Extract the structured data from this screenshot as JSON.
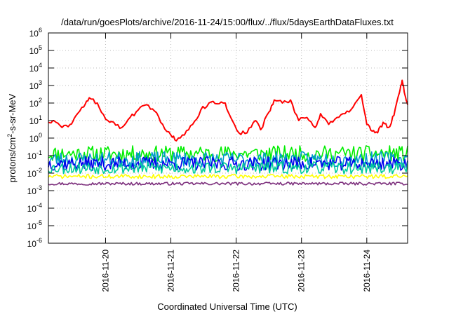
{
  "chart_data": {
    "type": "line",
    "title": "/data/run/goesPlots/archive/2016-11-24/15:00/flux/../flux/5daysEarthDataFluxes.txt",
    "xlabel": "Coordinated Universal Time (UTC)",
    "ylabel": {
      "prefix": "protons/cm",
      "sup": "2",
      "suffix": "-s-sr-MeV"
    },
    "yscale": "log",
    "ylim": [
      1e-06,
      1000000.0
    ],
    "xlim": [
      "2016-11-19T03:00",
      "2016-11-24T15:00"
    ],
    "grid": true,
    "legend": "none",
    "xticks": [
      {
        "x": "2016-11-20T00:00",
        "label": "2016-11-20"
      },
      {
        "x": "2016-11-21T00:00",
        "label": "2016-11-21"
      },
      {
        "x": "2016-11-22T00:00",
        "label": "2016-11-22"
      },
      {
        "x": "2016-11-23T00:00",
        "label": "2016-11-23"
      },
      {
        "x": "2016-11-24T00:00",
        "label": "2016-11-24"
      }
    ],
    "yticks": [
      {
        "base": "10",
        "exp": "-6",
        "value": 1e-06
      },
      {
        "base": "10",
        "exp": "-5",
        "value": 1e-05
      },
      {
        "base": "10",
        "exp": "-4",
        "value": 0.0001
      },
      {
        "base": "10",
        "exp": "-3",
        "value": 0.001
      },
      {
        "base": "10",
        "exp": "-2",
        "value": 0.01
      },
      {
        "base": "10",
        "exp": "-1",
        "value": 0.1
      },
      {
        "base": "10",
        "exp": "0",
        "value": 1
      },
      {
        "base": "10",
        "exp": "1",
        "value": 10.0
      },
      {
        "base": "10",
        "exp": "2",
        "value": 100.0
      },
      {
        "base": "10",
        "exp": "3",
        "value": 1000.0
      },
      {
        "base": "10",
        "exp": "4",
        "value": 10000.0
      },
      {
        "base": "10",
        "exp": "5",
        "value": 100000.0
      },
      {
        "base": "10",
        "exp": "6",
        "value": 1000000.0
      }
    ],
    "series": [
      {
        "color": "#ff0000",
        "noise": 0.12,
        "x": [
          "2016-11-19T03:00",
          "2016-11-19T05:00",
          "2016-11-19T08:00",
          "2016-11-19T11:00",
          "2016-11-19T13:00",
          "2016-11-19T16:00",
          "2016-11-19T18:00",
          "2016-11-19T21:00",
          "2016-11-20T00:00",
          "2016-11-20T03:00",
          "2016-11-20T06:00",
          "2016-11-20T09:00",
          "2016-11-20T12:00",
          "2016-11-20T15:00",
          "2016-11-20T18:00",
          "2016-11-20T21:00",
          "2016-11-21T00:00",
          "2016-11-21T02:00",
          "2016-11-21T05:00",
          "2016-11-21T08:00",
          "2016-11-21T11:00",
          "2016-11-21T14:00",
          "2016-11-21T17:00",
          "2016-11-21T20:00",
          "2016-11-21T22:00",
          "2016-11-22T01:00",
          "2016-11-22T04:00",
          "2016-11-22T07:00",
          "2016-11-22T09:00",
          "2016-11-22T12:00",
          "2016-11-22T14:00",
          "2016-11-22T17:00",
          "2016-11-22T20:00",
          "2016-11-22T23:00",
          "2016-11-23T02:00",
          "2016-11-23T05:00",
          "2016-11-23T07:00",
          "2016-11-23T10:00",
          "2016-11-23T13:00",
          "2016-11-23T16:00",
          "2016-11-23T19:00",
          "2016-11-23T22:00",
          "2016-11-24T00:00",
          "2016-11-24T02:00",
          "2016-11-24T04:00",
          "2016-11-24T06:00",
          "2016-11-24T08:00",
          "2016-11-24T10:00",
          "2016-11-24T12:00",
          "2016-11-24T13:00",
          "2016-11-24T14:00",
          "2016-11-24T15:00"
        ],
        "y": [
          8,
          10,
          4,
          6,
          18,
          60,
          200,
          100,
          12,
          8,
          4,
          15,
          40,
          80,
          35,
          6,
          1.5,
          0.7,
          1.5,
          6,
          40,
          100,
          90,
          100,
          15,
          2,
          2,
          10,
          3,
          30,
          150,
          100,
          150,
          10,
          15,
          4,
          25,
          6,
          15,
          25,
          60,
          300,
          6,
          2.5,
          2,
          8,
          4,
          20,
          400,
          2000,
          300,
          80
        ]
      },
      {
        "color": "#00ee00",
        "center": 0.13,
        "spread": 0.45,
        "seed": 11
      },
      {
        "color": "#009bcc",
        "center": 0.06,
        "spread": 0.45,
        "seed": 23
      },
      {
        "color": "#0000ee",
        "center": 0.035,
        "spread": 0.4,
        "seed": 37
      },
      {
        "color": "#00cc99",
        "center": 0.02,
        "spread": 0.35,
        "seed": 53
      },
      {
        "color": "#ffff00",
        "center": 0.0065,
        "spread": 0.12,
        "seed": 71
      },
      {
        "color": "#7b2d7b",
        "center": 0.0025,
        "spread": 0.08,
        "seed": 97
      }
    ]
  }
}
